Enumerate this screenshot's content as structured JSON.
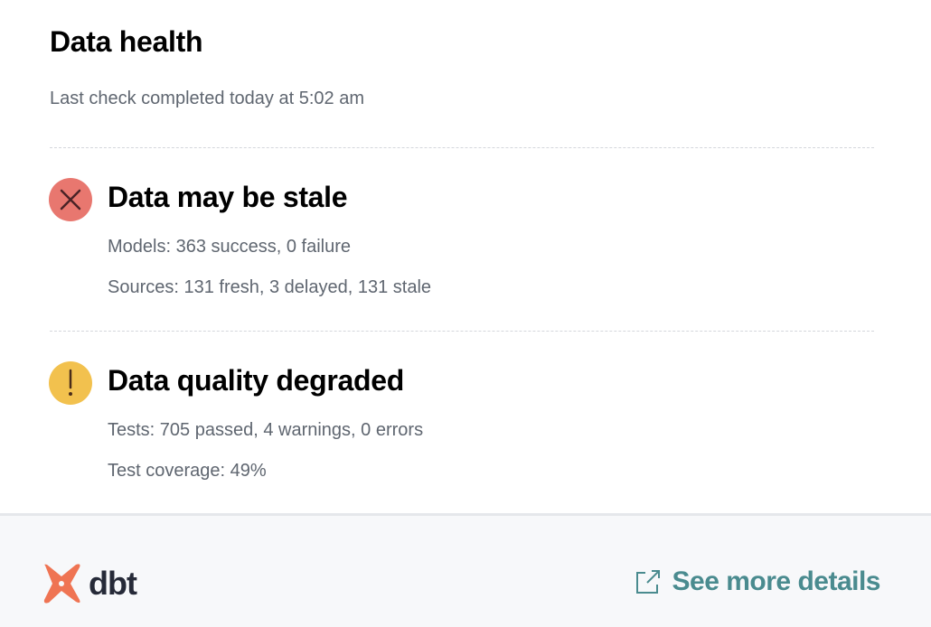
{
  "header": {
    "title": "Data health",
    "subtitle": "Last check completed today at 5:02 am"
  },
  "sections": [
    {
      "status": "error",
      "icon": "x-circle-icon",
      "color": "#e8776f",
      "title": "Data may be stale",
      "lines": [
        "Models: 363 success, 0 failure",
        "Sources: 131 fresh, 3 delayed, 131 stale"
      ]
    },
    {
      "status": "warning",
      "icon": "exclamation-circle-icon",
      "color": "#f2c14e",
      "title": "Data quality degraded",
      "lines": [
        "Tests: 705 passed, 4 warnings, 0 errors",
        "Test coverage: 49%"
      ]
    }
  ],
  "footer": {
    "logo_text": "dbt",
    "logo_color": "#ef7453",
    "link_label": "See more details",
    "link_color": "#4a8b8f"
  }
}
